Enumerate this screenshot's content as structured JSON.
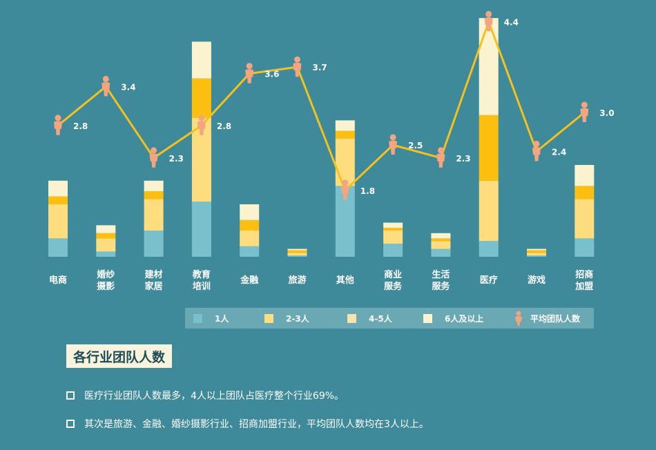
{
  "chart_data": {
    "type": "bar+line",
    "stacked": true,
    "categories": [
      "电商",
      "婚纱\n摄影",
      "建材\n家居",
      "教育\n培训",
      "金融",
      "旅游",
      "其他",
      "商业\n服务",
      "生活\n服务",
      "医疗",
      "游戏",
      "招商\n加盟"
    ],
    "series": [
      {
        "name": "1人",
        "type": "bar",
        "color": "#79c0cc",
        "values": [
          0.7,
          0.2,
          1.0,
          2.1,
          0.4,
          0.05,
          2.7,
          0.5,
          0.3,
          0.6,
          0.05,
          0.7
        ]
      },
      {
        "name": "2-3人",
        "type": "bar",
        "color": "#fddd7d",
        "values": [
          1.3,
          0.5,
          1.2,
          3.2,
          0.6,
          0.1,
          1.8,
          0.5,
          0.3,
          2.3,
          0.1,
          1.5
        ]
      },
      {
        "name": "4-5人",
        "type": "bar",
        "color": "#fdbf0f",
        "values": [
          0.3,
          0.2,
          0.3,
          1.5,
          0.4,
          0.1,
          0.3,
          0.1,
          0.1,
          2.5,
          0.1,
          0.5
        ]
      },
      {
        "name": "6人及以上",
        "type": "bar",
        "color": "#fbf3d0",
        "values": [
          0.6,
          0.3,
          0.4,
          1.4,
          0.6,
          0.05,
          0.4,
          0.2,
          0.2,
          3.7,
          0.05,
          0.8
        ]
      },
      {
        "name": "平均团队人数",
        "type": "line",
        "color": "#f5c21b",
        "values": [
          2.8,
          3.4,
          2.3,
          2.8,
          3.6,
          3.7,
          1.8,
          2.5,
          2.3,
          4.4,
          2.4,
          3.0
        ]
      }
    ],
    "value_labels": [
      "2.8",
      "3.4",
      "2.3",
      "2.8",
      "3.6",
      "3.7",
      "1.8",
      "2.5",
      "2.3",
      "4.4",
      "2.4",
      "3.0"
    ],
    "ylim": [
      0,
      9
    ],
    "legend_position": "bottom"
  },
  "legend": [
    {
      "label": "1人",
      "color": "#79c0cc",
      "kind": "swatch"
    },
    {
      "label": "2-3人",
      "color": "#fddd7d",
      "kind": "swatch"
    },
    {
      "label": "4-5人",
      "color": "#f7e2b0",
      "kind": "swatch"
    },
    {
      "label": "6人及以上",
      "color": "#fbf3d0",
      "kind": "swatch"
    },
    {
      "label": "平均团队人数",
      "color": "#f2a57e",
      "kind": "person-icon"
    }
  ],
  "title": "各行业团队人数",
  "notes": [
    "医疗行业团队人数最多，4人以上团队占医疗整个行业69%。",
    "其次是旅游、金融、婚纱摄影行业、招商加盟行业，平均团队人数均在3人以上。"
  ],
  "colors": {
    "background": "#3e8a9a",
    "line": "#f5c21b",
    "marker": "#f2a57e"
  }
}
